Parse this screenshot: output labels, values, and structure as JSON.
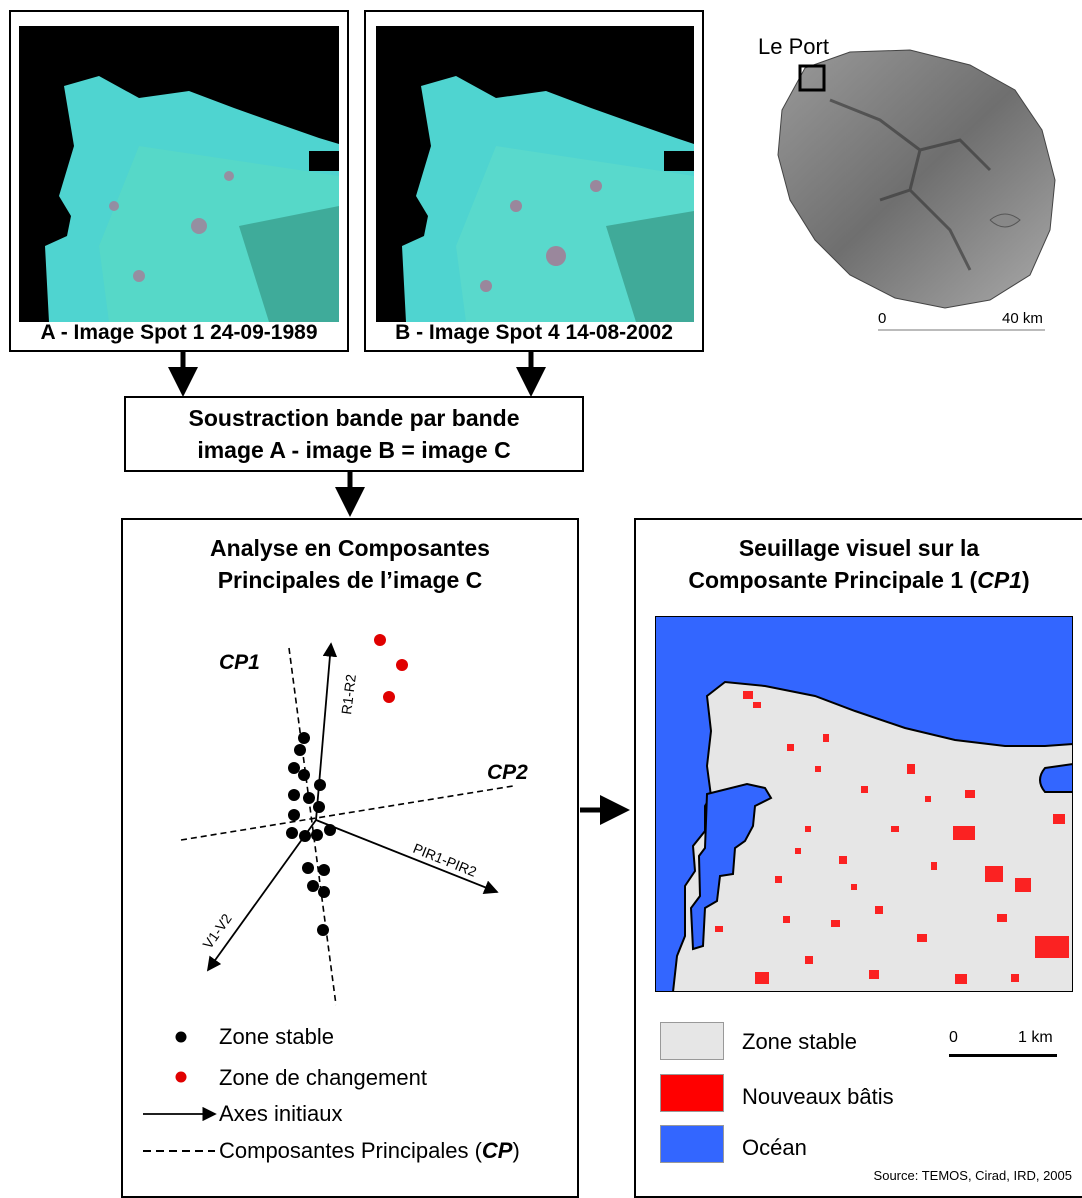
{
  "image_a": {
    "caption": "A - Image Spot 1 24-09-1989"
  },
  "image_b": {
    "caption": "B - Image Spot 4 14-08-2002"
  },
  "island_map": {
    "place_label": "Le Port",
    "scale_start": "0",
    "scale_end": "40 km"
  },
  "subtraction": {
    "line1": "Soustraction bande par bande",
    "line2": "image A - image B = image C"
  },
  "pca": {
    "title_line1": "Analyse en Composantes",
    "title_line2": "Principales de l’image C",
    "axis_cp1": "CP1",
    "axis_cp2": "CP2",
    "axis_r": "R1-R2",
    "axis_pir": "PIR1-PIR2",
    "axis_v": "V1-V2",
    "legend": {
      "stable": "Zone stable",
      "change": "Zone de changement",
      "axes": "Axes initiaux",
      "cp_prefix": "Composantes Principales (",
      "cp_abbr": "CP",
      "cp_suffix": ")"
    }
  },
  "threshold": {
    "title_line1": "Seuillage visuel sur la",
    "title_prefix": "Composante Principale 1 (",
    "title_abbr": "CP1",
    "title_suffix": ")",
    "legend": {
      "stable": "Zone stable",
      "new_buildings": "Nouveaux bâtis",
      "ocean": "Océan"
    },
    "scale_start": "0",
    "scale_end": "1 km"
  },
  "source": "Source: TEMOS, Cirad, IRD, 2005",
  "colors": {
    "stable": "#e6e6e6",
    "new_buildings": "#ff0000",
    "ocean": "#3366ff",
    "satellite_cyan": "#5fe0dc"
  }
}
